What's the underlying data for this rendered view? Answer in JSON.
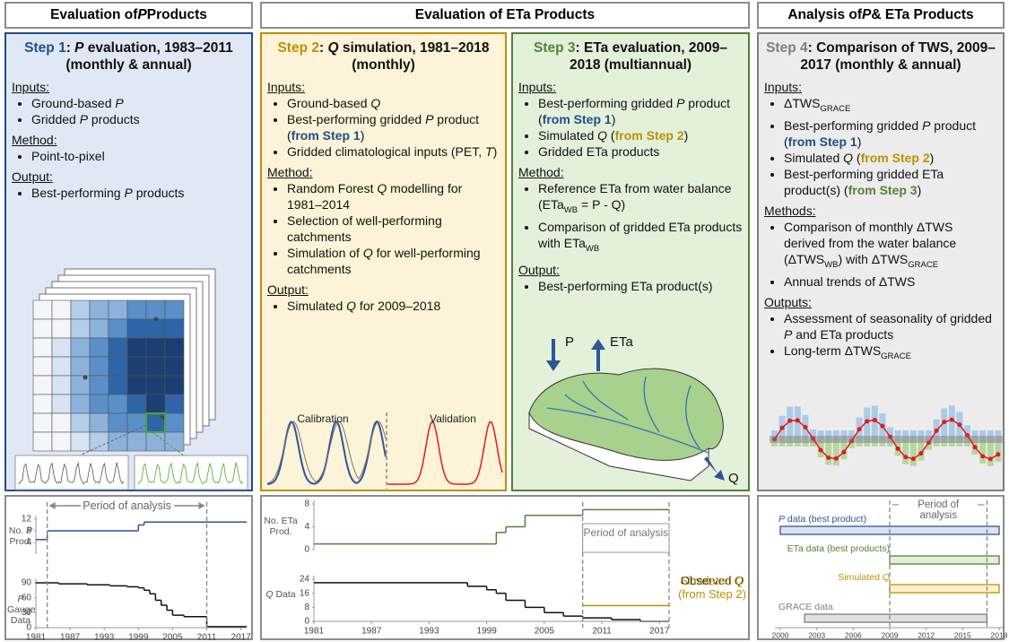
{
  "headers": [
    [
      {
        "t": "Evaluation of "
      },
      {
        "t": "P",
        "s": "i"
      },
      {
        "t": " Products"
      }
    ],
    [
      {
        "t": "Evaluation of ETa Products"
      }
    ],
    [
      {
        "t": "Analysis of "
      },
      {
        "t": "P",
        "s": "i"
      },
      {
        "t": " & ETa Products"
      }
    ]
  ],
  "steps": [
    {
      "color": "#1f4e8c",
      "bg": "#dfe8f4",
      "title": [
        {
          "t": "Step 1",
          "color": "#1f4e8c"
        },
        {
          "t": ": "
        },
        {
          "t": "P",
          "s": "i"
        },
        {
          "t": " evaluation, 1983–2011 (monthly & annual)"
        }
      ],
      "sections": [
        {
          "head": "Inputs:",
          "items": [
            [
              {
                "t": "Ground-based "
              },
              {
                "t": "P",
                "s": "i"
              }
            ],
            [
              {
                "t": "Gridded "
              },
              {
                "t": "P",
                "s": "i"
              },
              {
                "t": " products"
              }
            ]
          ]
        },
        {
          "head": "Method:",
          "items": [
            [
              {
                "t": "Point-to-pixel"
              }
            ]
          ]
        },
        {
          "head": "Output:",
          "items": [
            [
              {
                "t": "Best-performing "
              },
              {
                "t": "P",
                "s": "i"
              },
              {
                "t": " products"
              }
            ]
          ]
        }
      ],
      "labels": []
    },
    {
      "color": "#bf9000",
      "bg": "#fdf3d8",
      "title": [
        {
          "t": "Step 2",
          "color": "#bf9000"
        },
        {
          "t": ": "
        },
        {
          "t": "Q",
          "s": "i"
        },
        {
          "t": " simulation, 1981–2018 (monthly)"
        }
      ],
      "sections": [
        {
          "head": "Inputs:",
          "items": [
            [
              {
                "t": "Ground-based "
              },
              {
                "t": "Q",
                "s": "i"
              }
            ],
            [
              {
                "t": "Best-performing gridded "
              },
              {
                "t": "P",
                "s": "i"
              },
              {
                "t": " product ("
              },
              {
                "t": "from Step 1",
                "s": "b",
                "color": "#1f4e8c"
              },
              {
                "t": ")"
              }
            ],
            [
              {
                "t": "Gridded climatological inputs (PET, "
              },
              {
                "t": "T",
                "s": "i"
              },
              {
                "t": ")"
              }
            ]
          ]
        },
        {
          "head": "Method:",
          "items": [
            [
              {
                "t": "Random Forest "
              },
              {
                "t": "Q",
                "s": "i"
              },
              {
                "t": " modelling for 1981–2014"
              }
            ],
            [
              {
                "t": "Selection of well-performing catchments"
              }
            ],
            [
              {
                "t": "Simulation of "
              },
              {
                "t": "Q",
                "s": "i"
              },
              {
                "t": " for well-performing catchments"
              }
            ]
          ]
        },
        {
          "head": "Output:",
          "items": [
            [
              {
                "t": "Simulated "
              },
              {
                "t": "Q",
                "s": "i"
              },
              {
                "t": " for 2009–2018"
              }
            ]
          ]
        }
      ],
      "labels": [
        "Calibration",
        "Validation"
      ]
    },
    {
      "color": "#548235",
      "bg": "#e3f0da",
      "title": [
        {
          "t": "Step 3",
          "color": "#548235"
        },
        {
          "t": ": ETa evaluation, 2009–2018 (multiannual)"
        }
      ],
      "sections": [
        {
          "head": "Inputs:",
          "items": [
            [
              {
                "t": "Best-performing gridded "
              },
              {
                "t": "P",
                "s": "i"
              },
              {
                "t": " product ("
              },
              {
                "t": "from Step 1",
                "s": "b",
                "color": "#1f4e8c"
              },
              {
                "t": ")"
              }
            ],
            [
              {
                "t": "Simulated "
              },
              {
                "t": "Q",
                "s": "i"
              },
              {
                "t": " ("
              },
              {
                "t": "from Step 2",
                "s": "b",
                "color": "#bf9000"
              },
              {
                "t": ")"
              }
            ],
            [
              {
                "t": "Gridded ETa products"
              }
            ]
          ]
        },
        {
          "head": "Method:",
          "items": [
            [
              {
                "t": "Reference ETa from water balance (ETa"
              },
              {
                "t": "WB",
                "s": "sub"
              },
              {
                "t": " = P - Q)"
              }
            ],
            [
              {
                "t": "Comparison of gridded ETa products with ETa"
              },
              {
                "t": "WB",
                "s": "sub"
              }
            ]
          ]
        },
        {
          "head": "Output:",
          "items": [
            [
              {
                "t": "Best-performing ETa product(s)"
              }
            ]
          ]
        }
      ],
      "labels": [
        "P",
        "ETa",
        "Q"
      ]
    },
    {
      "color": "#7f7f7f",
      "bg": "#ececec",
      "title": [
        {
          "t": "Step 4",
          "color": "#7f7f7f"
        },
        {
          "t": ": Comparison of TWS, 2009–2017 (monthly & annual)"
        }
      ],
      "sections": [
        {
          "head": "Inputs:",
          "items": [
            [
              {
                "t": "ΔTWS"
              },
              {
                "t": "GRACE",
                "s": "sub"
              }
            ],
            [
              {
                "t": "Best-performing gridded "
              },
              {
                "t": "P",
                "s": "i"
              },
              {
                "t": " product ("
              },
              {
                "t": "from Step 1",
                "s": "b",
                "color": "#1f4e8c"
              },
              {
                "t": ")"
              }
            ],
            [
              {
                "t": "Simulated "
              },
              {
                "t": "Q",
                "s": "i"
              },
              {
                "t": " ("
              },
              {
                "t": "from Step 2",
                "s": "b",
                "color": "#bf9000"
              },
              {
                "t": ")"
              }
            ],
            [
              {
                "t": "Best-performing gridded ETa product(s) ("
              },
              {
                "t": "from Step 3",
                "s": "b",
                "color": "#548235"
              },
              {
                "t": ")"
              }
            ]
          ]
        },
        {
          "head": "Methods:",
          "items": [
            [
              {
                "t": "Comparison of monthly ΔTWS derived from the water balance (ΔTWS"
              },
              {
                "t": "WB",
                "s": "sub"
              },
              {
                "t": ") with ΔTWS"
              },
              {
                "t": "GRACE",
                "s": "sub"
              }
            ],
            [
              {
                "t": "Annual trends of ΔTWS"
              }
            ]
          ]
        },
        {
          "head": "Outputs:",
          "items": [
            [
              {
                "t": "Assessment of seasonality of gridded "
              },
              {
                "t": "P",
                "s": "i"
              },
              {
                "t": " and ETa products"
              }
            ],
            [
              {
                "t": "Long-term ΔTWS"
              },
              {
                "t": "GRACE",
                "s": "sub"
              }
            ]
          ]
        }
      ],
      "labels": []
    }
  ],
  "panels": [
    {
      "xlim": [
        1981,
        2018
      ],
      "xticks": [
        1981,
        1987,
        1993,
        1999,
        2005,
        2011,
        2017
      ],
      "period": [
        1983,
        2011
      ],
      "period_label": "Period of analysis",
      "charts": [
        {
          "ylabel": [
            {
              "t": "No. "
            },
            {
              "t": "P",
              "s": "i"
            },
            {
              "t": " Prod."
            }
          ],
          "ylim": [
            0,
            12
          ],
          "yticks": [
            4,
            8,
            12
          ],
          "series": [
            {
              "color": "#2f5597",
              "x": [
                1981,
                1983,
                1999,
                2000
              ],
              "values": [
                5,
                8,
                10,
                11
              ]
            }
          ]
        },
        {
          "ylabel": [
            {
              "t": "P",
              "s": "i"
            },
            {
              "t": " Gauge Data"
            }
          ],
          "ylim": [
            0,
            90
          ],
          "yticks": [
            0,
            30,
            60,
            90
          ],
          "series": [
            {
              "color": "#111111",
              "x": [
                1981,
                1985,
                1990,
                1994,
                1997,
                1999,
                2000,
                2001,
                2002,
                2003,
                2004,
                2005,
                2007,
                2011
              ],
              "values": [
                90,
                88,
                86,
                84,
                82,
                80,
                75,
                68,
                55,
                45,
                35,
                25,
                22,
                2
              ]
            }
          ]
        }
      ]
    },
    {
      "xlim": [
        1981,
        2018
      ],
      "xticks": [
        1981,
        1987,
        1993,
        1999,
        2005,
        2011,
        2017
      ],
      "period": [
        2009,
        2018
      ],
      "period_label": "Period of analysis",
      "charts": [
        {
          "ylabel": [
            {
              "t": "No. ETa Prod."
            }
          ],
          "ylim": [
            0,
            8
          ],
          "yticks": [
            0,
            4,
            8
          ],
          "series": [
            {
              "color": "#548235",
              "x": [
                1981,
                2000,
                2001,
                2003,
                2009
              ],
              "values": [
                1,
                3,
                4,
                6,
                7
              ]
            }
          ]
        },
        {
          "ylabel": [
            {
              "t": "Q",
              "s": "i"
            },
            {
              "t": " Data"
            }
          ],
          "ylim": [
            0,
            24
          ],
          "yticks": [
            0,
            8,
            16,
            24
          ],
          "series": [
            {
              "name": [
                {
                  "t": "Observed "
                },
                {
                  "t": "Q",
                  "s": "i"
                }
              ],
              "color": "#111111",
              "x": [
                1981,
                1997,
                1999,
                2000,
                2001,
                2003,
                2005,
                2007,
                2009,
                2012,
                2015
              ],
              "values": [
                22,
                20,
                18,
                16,
                12,
                8,
                5,
                3,
                2,
                1,
                0
              ]
            },
            {
              "name": [
                {
                  "t": "Simulated "
                },
                {
                  "t": "Q",
                  "s": "i"
                },
                {
                  "t": " (from Step 2)"
                }
              ],
              "color": "#bf9000",
              "x": [
                2009
              ],
              "values": [
                9
              ]
            }
          ]
        }
      ]
    }
  ],
  "gantt": {
    "xlim": [
      2000,
      2018
    ],
    "xticks": [
      2000,
      2003,
      2006,
      2009,
      2012,
      2015,
      2018
    ],
    "period": [
      2009,
      2017
    ],
    "period_label": "Period of analysis",
    "bars": [
      {
        "label": [
          {
            "t": "P",
            "s": "i"
          },
          {
            "t": " data (best product)"
          }
        ],
        "start": 2000,
        "end": 2018,
        "color": "#dae3f3",
        "edge": "#2f5597"
      },
      {
        "label": [
          {
            "t": "ETa data (best products)"
          }
        ],
        "start": 2009,
        "end": 2018,
        "color": "#e2efd9",
        "edge": "#548235"
      },
      {
        "label": [
          {
            "t": "Simulated "
          },
          {
            "t": "Q",
            "s": "i"
          }
        ],
        "start": 2009,
        "end": 2018,
        "color": "#fff2cc",
        "edge": "#bf9000"
      },
      {
        "label": [
          {
            "t": "GRACE data"
          }
        ],
        "start": 2002,
        "end": 2017,
        "color": "#e0e0e0",
        "edge": "#7f7f7f"
      }
    ]
  }
}
